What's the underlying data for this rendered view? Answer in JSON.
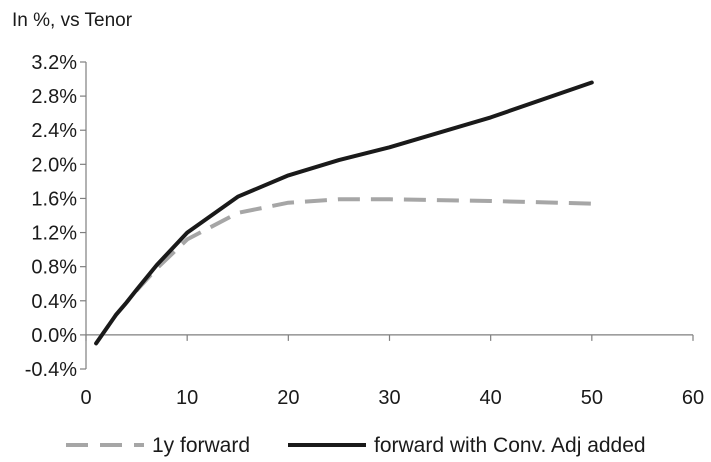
{
  "chart_data": {
    "type": "line",
    "title": "",
    "ylabel": "In %, vs Tenor",
    "xlabel": "",
    "xlim": [
      0,
      60
    ],
    "ylim": [
      -0.4,
      3.2
    ],
    "x_ticks": [
      0,
      10,
      20,
      30,
      40,
      50,
      60
    ],
    "y_ticks": [
      -0.4,
      0.0,
      0.4,
      0.8,
      1.2,
      1.6,
      2.0,
      2.4,
      2.8,
      3.2
    ],
    "y_tick_labels": [
      "-0.4%",
      "0.0%",
      "0.4%",
      "0.8%",
      "1.2%",
      "1.6%",
      "2.0%",
      "2.4%",
      "2.8%",
      "3.2%"
    ],
    "x_tick_labels": [
      "0",
      "10",
      "20",
      "30",
      "40",
      "50",
      "60"
    ],
    "grid": false,
    "legend_position": "bottom",
    "series": [
      {
        "name": "1y forward",
        "style": "dashed",
        "color": "#a6a6a6",
        "x": [
          1,
          2,
          3,
          4,
          5,
          7,
          10,
          15,
          20,
          25,
          30,
          40,
          50
        ],
        "y": [
          -0.1,
          0.07,
          0.24,
          0.38,
          0.52,
          0.78,
          1.12,
          1.43,
          1.55,
          1.59,
          1.59,
          1.57,
          1.54
        ]
      },
      {
        "name": "forward with Conv. Adj added",
        "style": "solid",
        "color": "#1a1a1a",
        "x": [
          1,
          2,
          3,
          4,
          5,
          7,
          10,
          15,
          20,
          25,
          30,
          40,
          50
        ],
        "y": [
          -0.1,
          0.07,
          0.24,
          0.38,
          0.53,
          0.82,
          1.2,
          1.62,
          1.87,
          2.05,
          2.2,
          2.55,
          2.96
        ]
      }
    ]
  }
}
